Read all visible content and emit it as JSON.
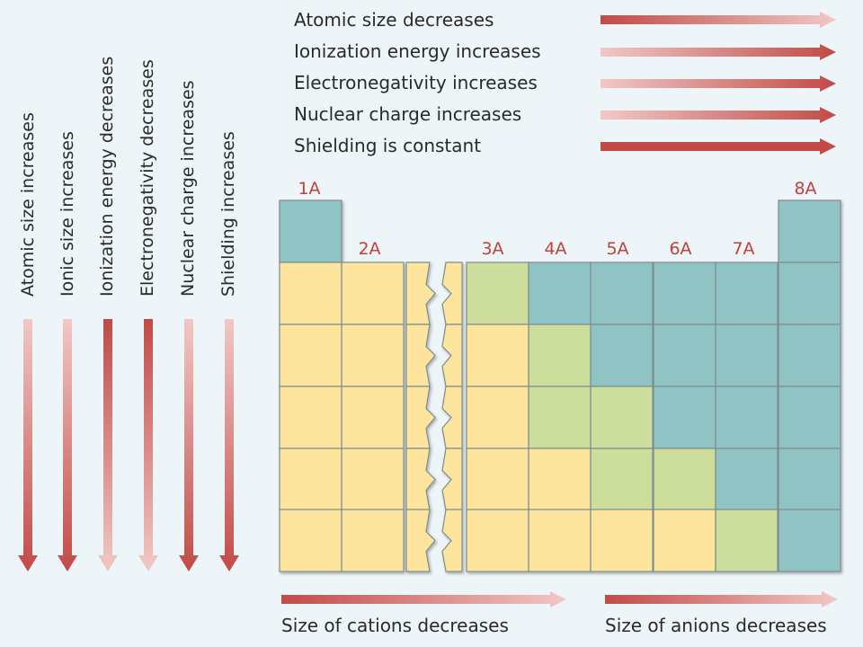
{
  "colors": {
    "blue": "#8fc3c4",
    "yellow": "#fde59d",
    "green": "#ccdd9c",
    "arrow_dark": "#c24a47",
    "arrow_light": "#f1c8c5",
    "label_red": "#c0413b"
  },
  "period_trends": [
    {
      "text": "Atomic size decreases",
      "gradient": "dark-to-light"
    },
    {
      "text": "Ionization energy increases",
      "gradient": "light-to-dark"
    },
    {
      "text": "Electronegativity increases",
      "gradient": "light-to-dark"
    },
    {
      "text": "Nuclear charge increases",
      "gradient": "light-to-dark"
    },
    {
      "text": "Shielding is constant",
      "gradient": "solid"
    }
  ],
  "group_trends": [
    {
      "text": "Atomic size increases",
      "gradient": "light-to-dark"
    },
    {
      "text": "Ionic size increases",
      "gradient": "light-to-dark"
    },
    {
      "text": "Ionization energy decreases",
      "gradient": "dark-to-light"
    },
    {
      "text": "Electronegativity decreases",
      "gradient": "dark-to-light"
    },
    {
      "text": "Nuclear charge increases",
      "gradient": "light-to-dark"
    },
    {
      "text": "Shielding increases",
      "gradient": "light-to-dark"
    }
  ],
  "group_labels": [
    "1A",
    "2A",
    "3A",
    "4A",
    "5A",
    "6A",
    "7A",
    "8A"
  ],
  "table": {
    "group_1A": [
      "blue",
      "yellow",
      "yellow",
      "yellow",
      "yellow",
      "yellow"
    ],
    "group_2A": [
      "yellow",
      "yellow",
      "yellow",
      "yellow",
      "yellow"
    ],
    "groups_3A_to_8A": [
      [
        "green",
        "blue",
        "blue",
        "blue",
        "blue",
        "blue"
      ],
      [
        "yellow",
        "green",
        "blue",
        "blue",
        "blue",
        "blue"
      ],
      [
        "yellow",
        "green",
        "green",
        "blue",
        "blue",
        "blue"
      ],
      [
        "yellow",
        "yellow",
        "green",
        "green",
        "blue",
        "blue"
      ],
      [
        "yellow",
        "yellow",
        "yellow",
        "yellow",
        "green",
        "blue"
      ]
    ],
    "group_8A_top": "blue"
  },
  "bottom_trends": [
    {
      "text": "Size of cations decreases",
      "gradient": "dark-to-light"
    },
    {
      "text": "Size of anions decreases",
      "gradient": "dark-to-light"
    }
  ]
}
